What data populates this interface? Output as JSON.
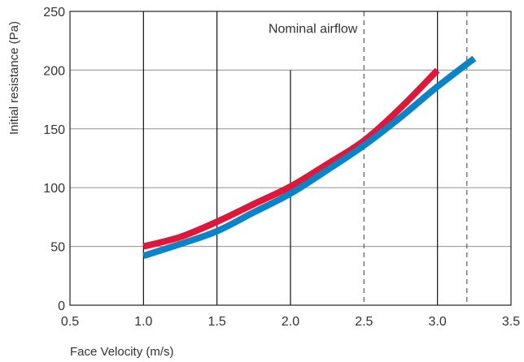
{
  "chart_data": {
    "type": "line",
    "title": "",
    "xlabel": "Face Velocity (m/s)",
    "ylabel": "Initial resistance (Pa)",
    "xlim": [
      0.5,
      3.5
    ],
    "ylim": [
      0,
      250
    ],
    "xticks": [
      0.5,
      1.0,
      1.5,
      2.0,
      2.5,
      3.0,
      3.5
    ],
    "xtick_labels": [
      "0.5",
      "1.0",
      "1.5",
      "2.0",
      "2.5",
      "3.0",
      "3.5"
    ],
    "yticks": [
      0,
      50,
      100,
      150,
      200,
      250
    ],
    "ytick_labels": [
      "0",
      "50",
      "100",
      "150",
      "200",
      "250"
    ],
    "grid": {
      "vertical": true,
      "horizontal": true
    },
    "vertical_grid_lines": [
      {
        "x": 1.0,
        "y_top": 250,
        "style": "solid"
      },
      {
        "x": 1.5,
        "y_top": 250,
        "style": "solid"
      },
      {
        "x": 2.0,
        "y_top": 200,
        "style": "solid"
      },
      {
        "x": 2.5,
        "y_top": 250,
        "style": "dashed"
      },
      {
        "x": 3.0,
        "y_top": 250,
        "style": "solid"
      },
      {
        "x": 3.2,
        "y_top": 250,
        "style": "dashed"
      }
    ],
    "annotations": [
      {
        "text": "Nominal airflow",
        "x": 2.5,
        "y": 235
      }
    ],
    "series": [
      {
        "color": "#e0163a",
        "x": [
          1.0,
          1.25,
          1.5,
          1.75,
          2.0,
          2.25,
          2.5,
          2.75,
          3.0
        ],
        "y": [
          50,
          58,
          71,
          86,
          101,
          120,
          140,
          168,
          200
        ]
      },
      {
        "color": "#0a84c6",
        "x": [
          1.0,
          1.25,
          1.5,
          1.75,
          2.0,
          2.25,
          2.5,
          2.75,
          3.0,
          3.25
        ],
        "y": [
          42,
          52,
          63,
          79,
          95,
          115,
          136,
          160,
          186,
          210
        ]
      }
    ],
    "legend": "none"
  }
}
